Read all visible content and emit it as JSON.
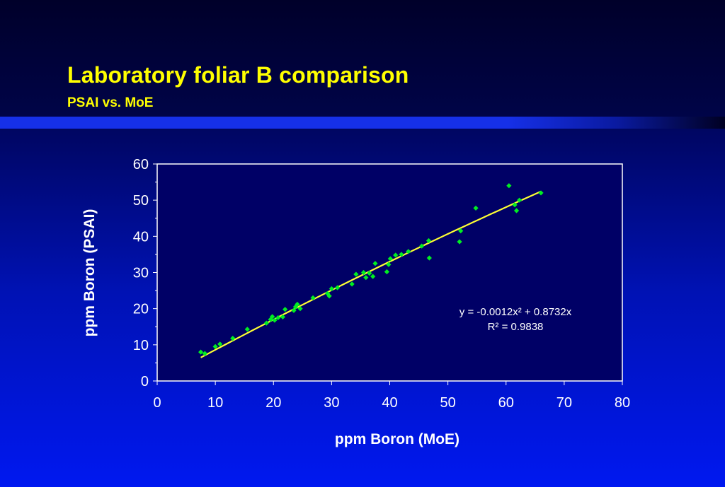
{
  "slide": {
    "title": "Laboratory foliar B comparison",
    "subtitle": "PSAI vs. MoE"
  },
  "colors": {
    "title": "#ffff00",
    "points": "#00ee22",
    "trendline": "#ffff33",
    "plot_area": "#000066"
  },
  "chart_data": {
    "type": "scatter",
    "xlabel": "ppm Boron (MoE)",
    "ylabel": "ppm Boron (PSAI)",
    "xlim": [
      0,
      80
    ],
    "ylim": [
      0,
      60
    ],
    "xticks": [
      0,
      10,
      20,
      30,
      40,
      50,
      60,
      70,
      80
    ],
    "yticks": [
      0,
      10,
      20,
      30,
      40,
      50,
      60
    ],
    "grid": false,
    "legend": "none",
    "trendline": {
      "equation": "y = -0.0012x² + 0.8732x",
      "r_squared": "R² = 0.9838",
      "a": -0.0012,
      "b": 0.8732,
      "x_range": [
        7.5,
        66
      ]
    },
    "points": [
      {
        "x": 7.5,
        "y": 8
      },
      {
        "x": 8.2,
        "y": 7.6
      },
      {
        "x": 10.0,
        "y": 9.5
      },
      {
        "x": 10.8,
        "y": 10.2
      },
      {
        "x": 13.0,
        "y": 11.8
      },
      {
        "x": 15.5,
        "y": 14.3
      },
      {
        "x": 18.8,
        "y": 16.0
      },
      {
        "x": 19.5,
        "y": 17.0
      },
      {
        "x": 19.8,
        "y": 17.8
      },
      {
        "x": 20.2,
        "y": 16.8
      },
      {
        "x": 20.8,
        "y": 17.5
      },
      {
        "x": 21.6,
        "y": 17.7
      },
      {
        "x": 22.0,
        "y": 19.8
      },
      {
        "x": 23.5,
        "y": 19.5
      },
      {
        "x": 23.8,
        "y": 20.5
      },
      {
        "x": 24.1,
        "y": 21.2
      },
      {
        "x": 24.6,
        "y": 20.0
      },
      {
        "x": 26.8,
        "y": 23.0
      },
      {
        "x": 29.3,
        "y": 24.2
      },
      {
        "x": 29.6,
        "y": 23.5
      },
      {
        "x": 30.0,
        "y": 25.5
      },
      {
        "x": 31.0,
        "y": 25.8
      },
      {
        "x": 33.5,
        "y": 26.8
      },
      {
        "x": 34.2,
        "y": 29.5
      },
      {
        "x": 35.5,
        "y": 30.0
      },
      {
        "x": 35.9,
        "y": 28.6
      },
      {
        "x": 36.5,
        "y": 29.8
      },
      {
        "x": 37.1,
        "y": 28.9
      },
      {
        "x": 37.5,
        "y": 32.5
      },
      {
        "x": 39.5,
        "y": 30.2
      },
      {
        "x": 39.8,
        "y": 32.2
      },
      {
        "x": 40.1,
        "y": 33.8
      },
      {
        "x": 41.0,
        "y": 34.8
      },
      {
        "x": 42.0,
        "y": 35.0
      },
      {
        "x": 43.2,
        "y": 35.8
      },
      {
        "x": 45.5,
        "y": 37.3
      },
      {
        "x": 46.7,
        "y": 38.8
      },
      {
        "x": 46.8,
        "y": 34.0
      },
      {
        "x": 52.0,
        "y": 38.5
      },
      {
        "x": 52.2,
        "y": 41.5
      },
      {
        "x": 54.8,
        "y": 47.8
      },
      {
        "x": 60.5,
        "y": 54.0
      },
      {
        "x": 61.5,
        "y": 48.7
      },
      {
        "x": 61.8,
        "y": 47.1
      },
      {
        "x": 62.3,
        "y": 50.0
      },
      {
        "x": 66.0,
        "y": 52.0
      }
    ]
  }
}
